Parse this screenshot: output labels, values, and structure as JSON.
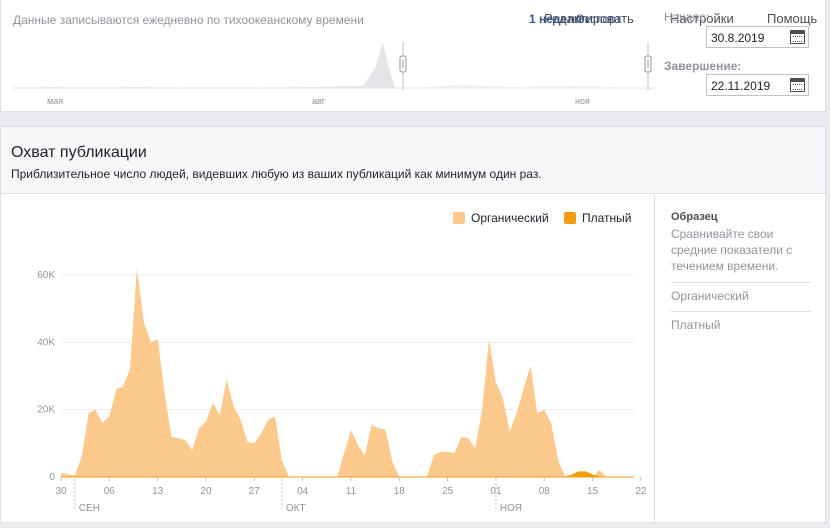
{
  "range": {
    "note": "Данные записываются ежедневно по тихоокеанскому времени",
    "links": [
      "1 неделя",
      "Экспорт",
      "Редактировать",
      "Настройки",
      "Помощь"
    ],
    "start_label": "Начало:",
    "start_value": "30.8.2019",
    "end_label": "Завершение:",
    "end_value": "22.11.2019",
    "mini_axis": [
      "мая",
      "авг",
      "ноя"
    ]
  },
  "reach": {
    "title": "Охват публикации",
    "subtitle": "Приблизительное число людей, видевших любую из ваших публикаций как минимум один раз."
  },
  "side": {
    "title": "Образец",
    "description": "Сравнивайте свои средние показатели с течением времени.",
    "items": [
      "Органический",
      "Платный"
    ]
  },
  "colors": {
    "organic": "#fbc98c",
    "paid": "#f39c12",
    "mini": "#e3e5e8"
  },
  "chart_data": {
    "type": "area",
    "ylim": [
      0,
      60000
    ],
    "y_ticks": [
      "0",
      "20K",
      "40K",
      "60K"
    ],
    "x_ticks": [
      "30",
      "06",
      "13",
      "20",
      "27",
      "04",
      "11",
      "18",
      "25",
      "01",
      "08",
      "15",
      "22"
    ],
    "month_labels": [
      "СЕН",
      "ОКТ",
      "НОЯ"
    ],
    "series": [
      {
        "name": "Органический",
        "values": [
          1200,
          800,
          500,
          6000,
          19000,
          20000,
          16000,
          18000,
          26000,
          27000,
          32000,
          62000,
          46000,
          40000,
          41000,
          25000,
          12000,
          11500,
          11000,
          8000,
          14500,
          16500,
          22000,
          18500,
          29000,
          21000,
          17000,
          10500,
          10000,
          13000,
          17000,
          18000,
          5000,
          0,
          0,
          0,
          0,
          0,
          0,
          0,
          0,
          7000,
          14000,
          9500,
          6500,
          15500,
          14500,
          14000,
          4500,
          0,
          0,
          0,
          0,
          0,
          6500,
          7500,
          7500,
          7000,
          12000,
          11500,
          8500,
          20000,
          41000,
          28000,
          23500,
          13500,
          19000,
          26000,
          33000,
          19000,
          20000,
          16000,
          5000,
          0,
          0,
          0,
          0,
          0,
          2000,
          0,
          0,
          0,
          0,
          0
        ]
      },
      {
        "name": "Платный",
        "values": [
          0,
          0,
          0,
          0,
          0,
          0,
          0,
          0,
          0,
          0,
          0,
          0,
          0,
          0,
          0,
          0,
          0,
          0,
          0,
          0,
          0,
          0,
          0,
          0,
          0,
          0,
          0,
          0,
          0,
          0,
          0,
          0,
          0,
          0,
          0,
          0,
          0,
          0,
          0,
          0,
          0,
          0,
          0,
          0,
          0,
          0,
          0,
          0,
          0,
          0,
          0,
          0,
          0,
          0,
          0,
          0,
          0,
          0,
          0,
          0,
          0,
          0,
          0,
          0,
          0,
          0,
          0,
          0,
          0,
          0,
          0,
          0,
          0,
          0,
          600,
          1500,
          1500,
          600,
          0,
          0,
          0,
          0,
          0,
          0
        ]
      }
    ]
  }
}
